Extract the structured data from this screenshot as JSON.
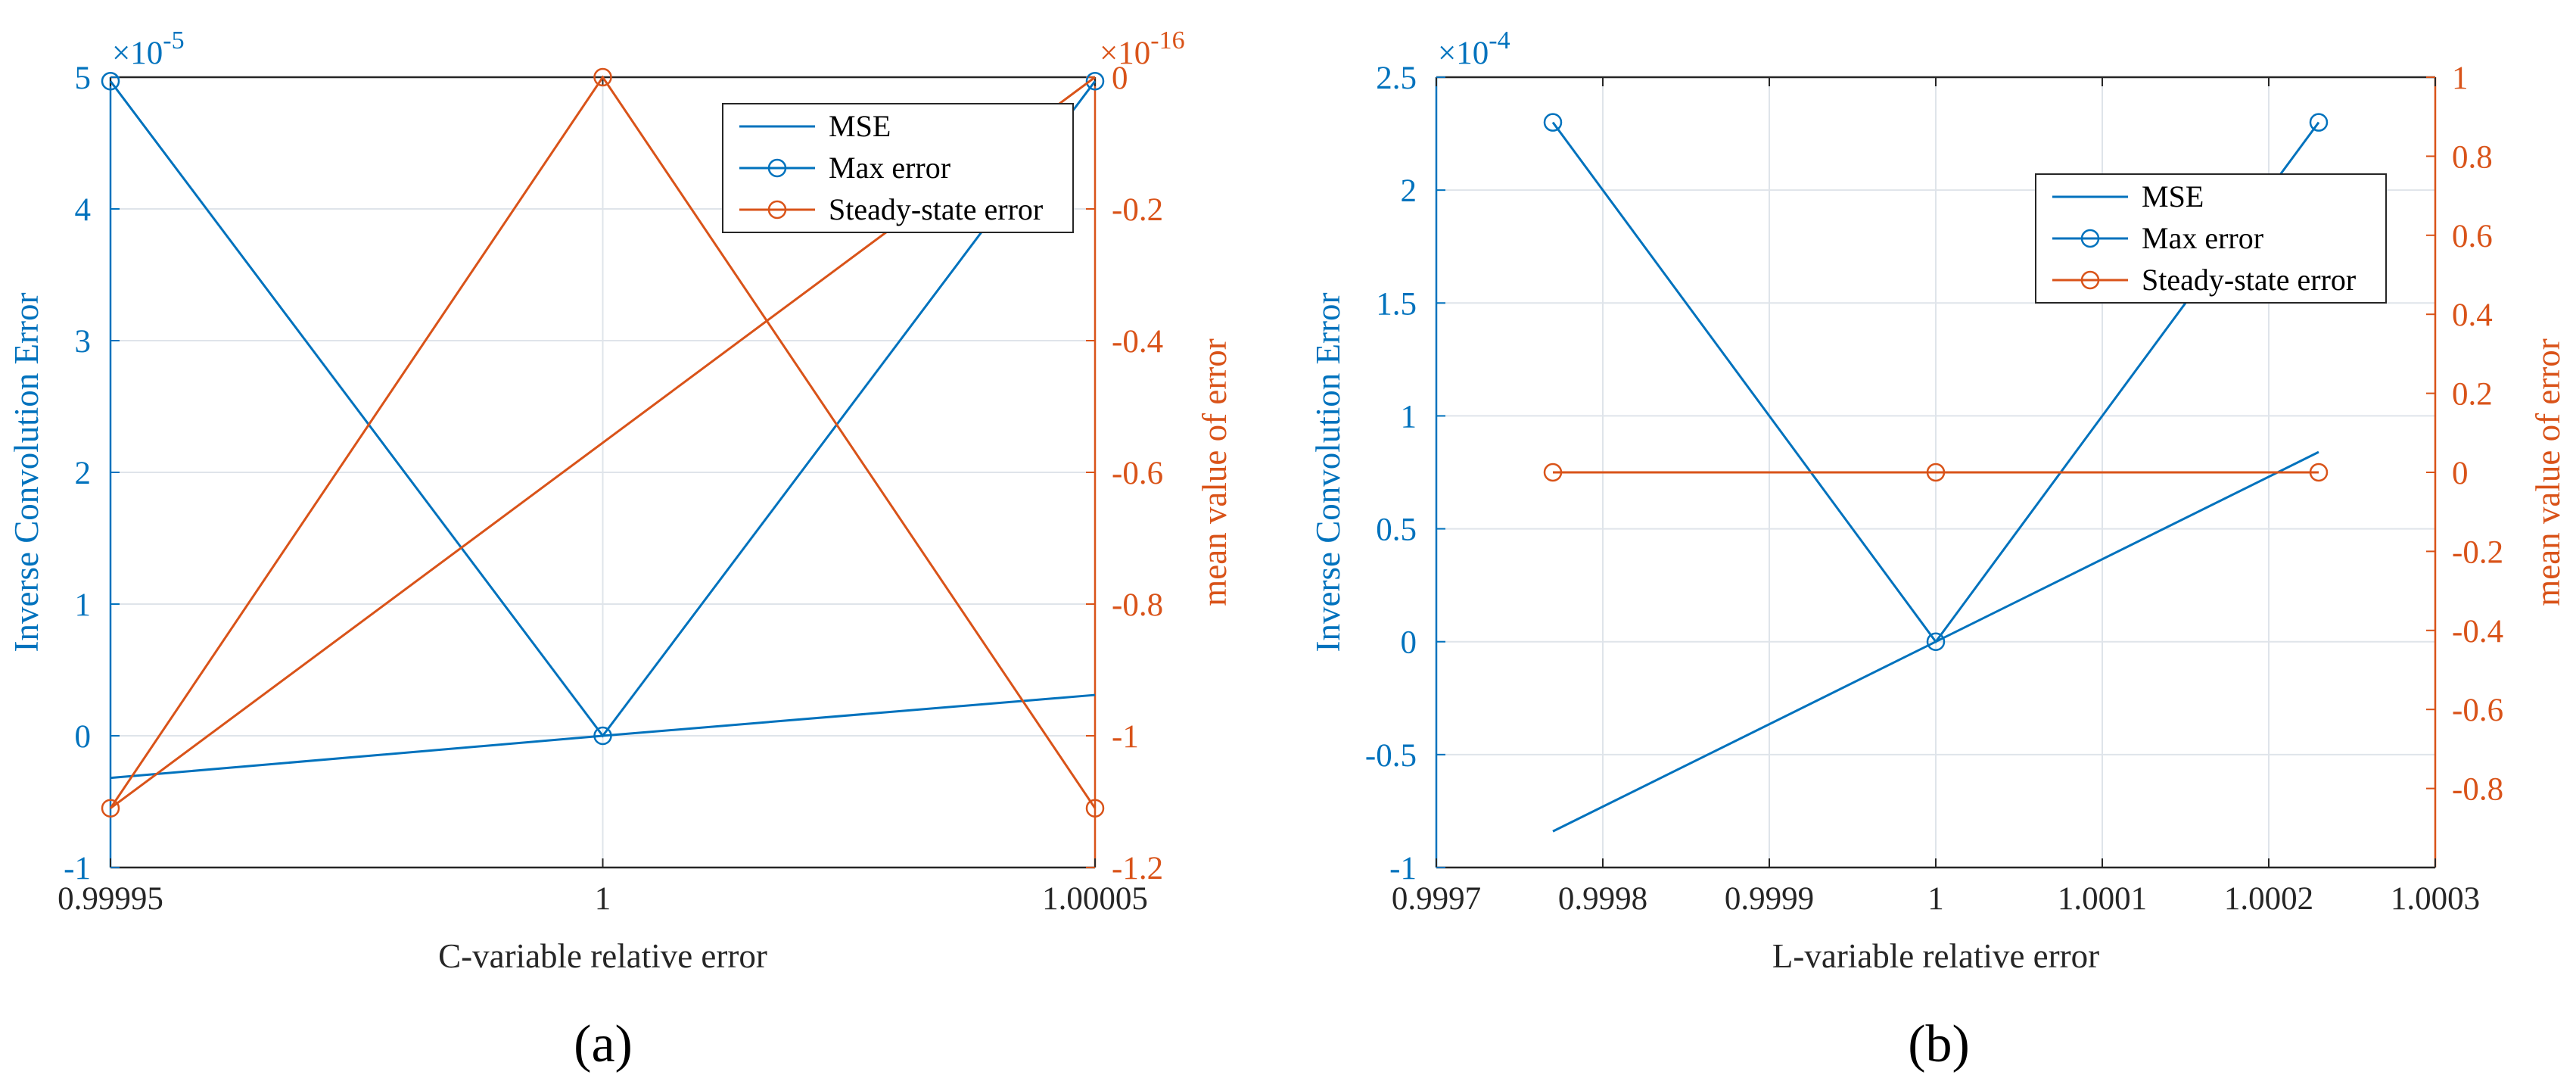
{
  "colors": {
    "blue": "#0072BD",
    "orange": "#D95319",
    "grid": "#dfe4ea"
  },
  "chart_data": [
    {
      "type": "line",
      "panel_label": "(a)",
      "xlabel": "C-variable relative error",
      "ylabel_left": "Inverse Convolution Error",
      "ylabel_right": "mean value of error",
      "xlim": [
        0.99995,
        1.00005
      ],
      "xticks": [
        0.99995,
        1,
        1.00005
      ],
      "xtick_labels": [
        "0.99995",
        "1",
        "1.00005"
      ],
      "ylim_left": [
        -1,
        5
      ],
      "yticks_left": [
        -1,
        0,
        1,
        2,
        3,
        4,
        5
      ],
      "ytick_labels_left": [
        "-1",
        "0",
        "1",
        "2",
        "3",
        "4",
        "5"
      ],
      "left_exponent_base": "×10",
      "left_exponent": "-5",
      "ylim_right": [
        -1.2,
        0
      ],
      "yticks_right": [
        -1.2,
        -1,
        -0.8,
        -0.6,
        -0.4,
        -0.2,
        0
      ],
      "ytick_labels_right": [
        "-1.2",
        "-1",
        "-0.8",
        "-0.6",
        "-0.4",
        "-0.2",
        "0"
      ],
      "right_exponent_base": "×10",
      "right_exponent": "-16",
      "legend_position": "top-right",
      "series": [
        {
          "name": "MSE",
          "axis": "left",
          "color": "blue",
          "marker": "none",
          "x": [
            0.99995,
            1,
            1.00005
          ],
          "y": [
            -0.32,
            0,
            0.31
          ]
        },
        {
          "name": "Max error",
          "axis": "left",
          "color": "blue",
          "marker": "circle",
          "x": [
            0.99995,
            1,
            1.00005
          ],
          "y": [
            4.97,
            0,
            4.97
          ]
        },
        {
          "name": "Steady-state error",
          "axis": "right",
          "color": "orange",
          "marker": "circle",
          "x": [
            0.99995,
            1,
            1.00005
          ],
          "y": [
            -1.11,
            0,
            -1.11
          ]
        },
        {
          "name": "",
          "axis": "right",
          "color": "orange",
          "marker": "none",
          "legend": false,
          "x": [
            0.99995,
            1.00005
          ],
          "y": [
            -1.11,
            0
          ]
        }
      ]
    },
    {
      "type": "line",
      "panel_label": "(b)",
      "xlabel": "L-variable relative error",
      "ylabel_left": "Inverse Convolution Error",
      "ylabel_right": "mean value of error",
      "xlim": [
        0.9997,
        1.0003
      ],
      "xticks": [
        0.9997,
        0.9998,
        0.9999,
        1,
        1.0001,
        1.0002,
        1.0003
      ],
      "xtick_labels": [
        "0.9997",
        "0.9998",
        "0.9999",
        "1",
        "1.0001",
        "1.0002",
        "1.0003"
      ],
      "ylim_left": [
        -1,
        2.5
      ],
      "yticks_left": [
        -1,
        -0.5,
        0,
        0.5,
        1,
        1.5,
        2,
        2.5
      ],
      "ytick_labels_left": [
        "-1",
        "-0.5",
        "0",
        "0.5",
        "1",
        "1.5",
        "2",
        "2.5"
      ],
      "left_exponent_base": "×10",
      "left_exponent": "-4",
      "ylim_right": [
        -1,
        1
      ],
      "yticks_right": [
        -0.8,
        -0.6,
        -0.4,
        -0.2,
        0,
        0.2,
        0.4,
        0.6,
        0.8,
        1
      ],
      "ytick_labels_right": [
        "-0.8",
        "-0.6",
        "-0.4",
        "-0.2",
        "0",
        "0.2",
        "0.4",
        "0.6",
        "0.8",
        "1"
      ],
      "legend_position": "top-right",
      "series": [
        {
          "name": "MSE",
          "axis": "left",
          "color": "blue",
          "marker": "none",
          "x": [
            0.99977,
            1,
            1.00023
          ],
          "y": [
            -0.84,
            0,
            0.84
          ]
        },
        {
          "name": "Max error",
          "axis": "left",
          "color": "blue",
          "marker": "circle",
          "x": [
            0.99977,
            1,
            1.00023
          ],
          "y": [
            2.3,
            0,
            2.3
          ]
        },
        {
          "name": "Steady-state error",
          "axis": "right",
          "color": "orange",
          "marker": "circle",
          "x": [
            0.99977,
            1,
            1.00023
          ],
          "y": [
            0,
            0,
            0
          ]
        }
      ]
    }
  ]
}
